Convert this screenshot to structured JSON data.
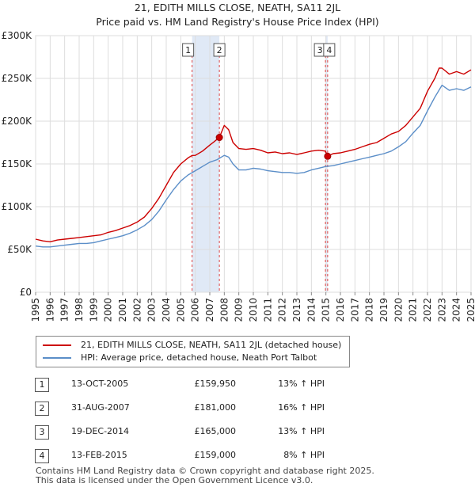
{
  "header": {
    "title_line1": "21, EDITH MILLS CLOSE, NEATH, SA11 2JL",
    "title_line2": "Price paid vs. HM Land Registry's House Price Index (HPI)"
  },
  "legend": {
    "items": [
      {
        "label": "21, EDITH MILLS CLOSE, NEATH, SA11 2JL (detached house)",
        "color": "#cc0000"
      },
      {
        "label": "HPI: Average price, detached house, Neath Port Talbot",
        "color": "#5b8ec8"
      }
    ]
  },
  "transactions": [
    {
      "num": "1",
      "date": "13-OCT-2005",
      "price": "£159,950",
      "hpi": "13% ↑ HPI"
    },
    {
      "num": "2",
      "date": "31-AUG-2007",
      "price": "£181,000",
      "hpi": "16% ↑ HPI"
    },
    {
      "num": "3",
      "date": "19-DEC-2014",
      "price": "£165,000",
      "hpi": "13% ↑ HPI"
    },
    {
      "num": "4",
      "date": "13-FEB-2015",
      "price": "£159,000",
      "hpi": "8% ↑ HPI"
    }
  ],
  "footer": {
    "line1": "Contains HM Land Registry data © Crown copyright and database right 2025.",
    "line2": "This data is licensed under the Open Government Licence v3.0."
  },
  "chart_data": {
    "type": "line",
    "title": "21, EDITH MILLS CLOSE, NEATH, SA11 2JL",
    "subtitle": "Price paid vs. HM Land Registry's House Price Index (HPI)",
    "xlabel": "",
    "ylabel": "",
    "xlim": [
      1995,
      2025
    ],
    "ylim": [
      0,
      300000
    ],
    "y_ticks": [
      {
        "value": 0,
        "label": "£0"
      },
      {
        "value": 50000,
        "label": "£50K"
      },
      {
        "value": 100000,
        "label": "£100K"
      },
      {
        "value": 150000,
        "label": "£150K"
      },
      {
        "value": 200000,
        "label": "£200K"
      },
      {
        "value": 250000,
        "label": "£250K"
      },
      {
        "value": 300000,
        "label": "£300K"
      }
    ],
    "x_ticks": [
      "1995",
      "1996",
      "1997",
      "1998",
      "1999",
      "2000",
      "2001",
      "2002",
      "2003",
      "2004",
      "2005",
      "2006",
      "2007",
      "2008",
      "2009",
      "2010",
      "2011",
      "2012",
      "2013",
      "2014",
      "2015",
      "2016",
      "2017",
      "2018",
      "2019",
      "2020",
      "2021",
      "2022",
      "2023",
      "2024",
      "2025"
    ],
    "grid": true,
    "series": [
      {
        "name": "21, EDITH MILLS CLOSE, NEATH, SA11 2JL (detached house)",
        "color": "#cc0000",
        "x": [
          1995.0,
          1995.5,
          1996.0,
          1996.5,
          1997.0,
          1997.5,
          1998.0,
          1998.5,
          1999.0,
          1999.5,
          2000.0,
          2000.5,
          2001.0,
          2001.5,
          2002.0,
          2002.5,
          2003.0,
          2003.5,
          2004.0,
          2004.5,
          2005.0,
          2005.5,
          2005.78,
          2006.0,
          2006.5,
          2007.0,
          2007.3,
          2007.66,
          2008.0,
          2008.3,
          2008.6,
          2009.0,
          2009.5,
          2010.0,
          2010.5,
          2011.0,
          2011.5,
          2012.0,
          2012.5,
          2013.0,
          2013.5,
          2014.0,
          2014.5,
          2014.97,
          2015.12,
          2015.5,
          2016.0,
          2016.5,
          2017.0,
          2017.5,
          2018.0,
          2018.5,
          2019.0,
          2019.5,
          2020.0,
          2020.5,
          2021.0,
          2021.5,
          2022.0,
          2022.5,
          2022.8,
          2023.0,
          2023.5,
          2024.0,
          2024.5,
          2025.0
        ],
        "values": [
          62000,
          60000,
          59000,
          61000,
          62000,
          63000,
          64000,
          65000,
          66000,
          67000,
          70000,
          72000,
          75000,
          78000,
          82000,
          88000,
          98000,
          110000,
          125000,
          140000,
          150000,
          157000,
          159950,
          160000,
          165000,
          172000,
          176000,
          181000,
          195000,
          190000,
          175000,
          168000,
          167000,
          168000,
          166000,
          163000,
          164000,
          162000,
          163000,
          161000,
          163000,
          165000,
          166000,
          165000,
          159000,
          162000,
          163000,
          165000,
          167000,
          170000,
          173000,
          175000,
          180000,
          185000,
          188000,
          195000,
          205000,
          215000,
          235000,
          250000,
          262000,
          262000,
          255000,
          258000,
          255000,
          260000
        ]
      },
      {
        "name": "HPI: Average price, detached house, Neath Port Talbot",
        "color": "#5b8ec8",
        "x": [
          1995.0,
          1995.5,
          1996.0,
          1996.5,
          1997.0,
          1997.5,
          1998.0,
          1998.5,
          1999.0,
          1999.5,
          2000.0,
          2000.5,
          2001.0,
          2001.5,
          2002.0,
          2002.5,
          2003.0,
          2003.5,
          2004.0,
          2004.5,
          2005.0,
          2005.5,
          2006.0,
          2006.5,
          2007.0,
          2007.5,
          2008.0,
          2008.3,
          2008.6,
          2009.0,
          2009.5,
          2010.0,
          2010.5,
          2011.0,
          2011.5,
          2012.0,
          2012.5,
          2013.0,
          2013.5,
          2014.0,
          2014.5,
          2015.0,
          2015.5,
          2016.0,
          2016.5,
          2017.0,
          2017.5,
          2018.0,
          2018.5,
          2019.0,
          2019.5,
          2020.0,
          2020.5,
          2021.0,
          2021.5,
          2022.0,
          2022.5,
          2023.0,
          2023.5,
          2024.0,
          2024.5,
          2025.0
        ],
        "values": [
          54000,
          53000,
          53000,
          54000,
          55000,
          56000,
          57000,
          57000,
          58000,
          60000,
          62000,
          64000,
          66000,
          69000,
          73000,
          78000,
          85000,
          95000,
          108000,
          120000,
          130000,
          137000,
          142000,
          147000,
          152000,
          155000,
          160000,
          158000,
          150000,
          143000,
          143000,
          145000,
          144000,
          142000,
          141000,
          140000,
          140000,
          139000,
          140000,
          143000,
          145000,
          147000,
          148000,
          150000,
          152000,
          154000,
          156000,
          158000,
          160000,
          162000,
          165000,
          170000,
          176000,
          186000,
          195000,
          212000,
          228000,
          242000,
          236000,
          238000,
          236000,
          240000
        ]
      }
    ],
    "sales": [
      {
        "num": "1",
        "x": 2005.78,
        "value": 159950,
        "marker": false
      },
      {
        "num": "2",
        "x": 2007.66,
        "value": 181000,
        "marker": true
      },
      {
        "num": "3",
        "x": 2014.97,
        "value": 165000,
        "marker": false
      },
      {
        "num": "4",
        "x": 2015.12,
        "value": 159000,
        "marker": true
      }
    ],
    "shaded_spans": [
      [
        2005.78,
        2007.66
      ],
      [
        2014.97,
        2015.12
      ]
    ]
  }
}
